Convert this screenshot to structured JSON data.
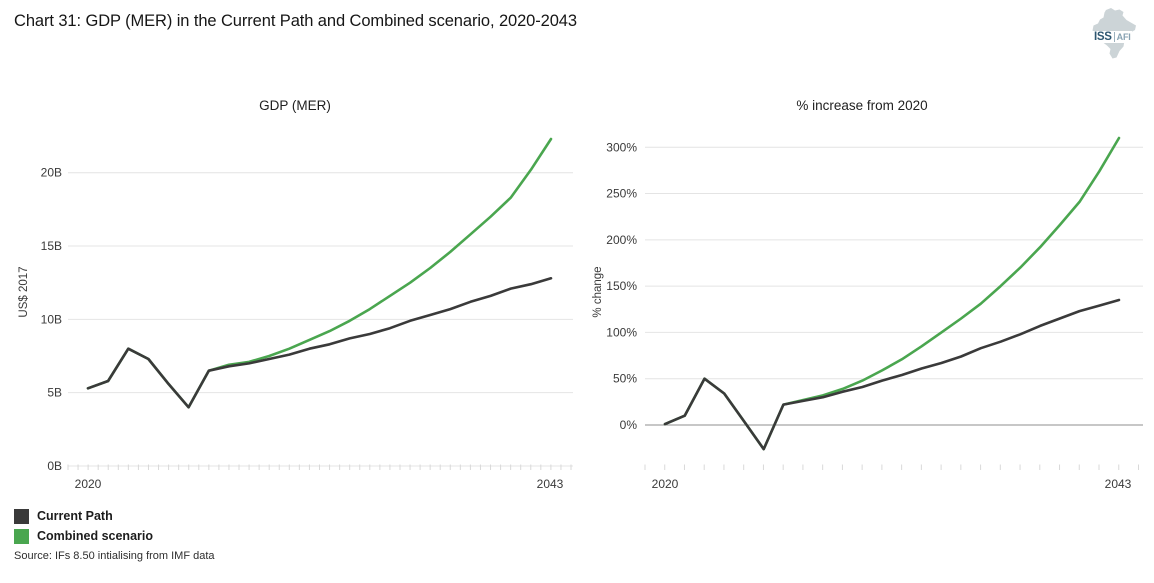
{
  "figure": {
    "title": "Chart 31: GDP (MER) in the Current Path and Combined scenario, 2020-2043"
  },
  "logo": {
    "iss": "ISS",
    "afi": "AFI"
  },
  "legend": [
    {
      "label": "Current Path",
      "color": "#3a3a3a"
    },
    {
      "label": "Combined scenario",
      "color": "#4aa64f"
    }
  ],
  "source": "Source: IFs 8.50 intialising from IMF data",
  "colors": {
    "grid": "#e4e4e4",
    "zero_axis": "#8f8f8f",
    "tick": "#d9d9d9",
    "current_path": "#3a3a3a",
    "combined_scenario": "#4aa64f"
  },
  "chart_data": [
    {
      "type": "line",
      "title": "GDP (MER)",
      "xlabel": "",
      "ylabel": "US$ 2017",
      "x": [
        2020,
        2021,
        2022,
        2023,
        2024,
        2025,
        2026,
        2027,
        2028,
        2029,
        2030,
        2031,
        2032,
        2033,
        2034,
        2035,
        2036,
        2037,
        2038,
        2039,
        2040,
        2041,
        2042,
        2043
      ],
      "xtick_labels": [
        "2020",
        "2043"
      ],
      "ytick_values": [
        0,
        5,
        10,
        15,
        20
      ],
      "ytick_labels": [
        "0B",
        "5B",
        "10B",
        "15B",
        "20B"
      ],
      "ylim": [
        0,
        22.6
      ],
      "grid": true,
      "series": [
        {
          "name": "Current Path",
          "color": "#3a3a3a",
          "values": [
            5.3,
            5.8,
            8.0,
            7.3,
            5.6,
            4.0,
            6.5,
            6.8,
            7.0,
            7.3,
            7.6,
            8.0,
            8.3,
            8.7,
            9.0,
            9.4,
            9.9,
            10.3,
            10.7,
            11.2,
            11.6,
            12.1,
            12.4,
            12.8
          ]
        },
        {
          "name": "Combined scenario",
          "color": "#4aa64f",
          "values": [
            5.3,
            5.8,
            8.0,
            7.3,
            5.6,
            4.0,
            6.5,
            6.9,
            7.1,
            7.5,
            8.0,
            8.6,
            9.2,
            9.9,
            10.7,
            11.6,
            12.5,
            13.5,
            14.6,
            15.8,
            17.0,
            18.3,
            20.2,
            22.3
          ]
        }
      ]
    },
    {
      "type": "line",
      "title": "% increase from 2020",
      "xlabel": "",
      "ylabel": "% change",
      "x": [
        2020,
        2021,
        2022,
        2023,
        2024,
        2025,
        2026,
        2027,
        2028,
        2029,
        2030,
        2031,
        2032,
        2033,
        2034,
        2035,
        2036,
        2037,
        2038,
        2039,
        2040,
        2041,
        2042,
        2043
      ],
      "xtick_labels": [
        "2020",
        "2043"
      ],
      "ytick_values": [
        0,
        50,
        100,
        150,
        200,
        250,
        300
      ],
      "ytick_labels": [
        "0%",
        "50%",
        "100%",
        "150%",
        "200%",
        "250%",
        "300%"
      ],
      "ylim": [
        -44,
        313
      ],
      "grid": true,
      "zero_axis": true,
      "series": [
        {
          "name": "Current Path",
          "color": "#3a3a3a",
          "values": [
            1,
            10,
            50,
            34,
            4,
            -26,
            22,
            26,
            30,
            36,
            41,
            48,
            54,
            61,
            67,
            74,
            83,
            90,
            98,
            107,
            115,
            123,
            129,
            135
          ]
        },
        {
          "name": "Combined scenario",
          "color": "#4aa64f",
          "values": [
            1,
            10,
            50,
            34,
            4,
            -26,
            22,
            27,
            32,
            39,
            48,
            59,
            71,
            85,
            100,
            115,
            131,
            150,
            170,
            192,
            216,
            241,
            274,
            310
          ]
        }
      ]
    }
  ]
}
